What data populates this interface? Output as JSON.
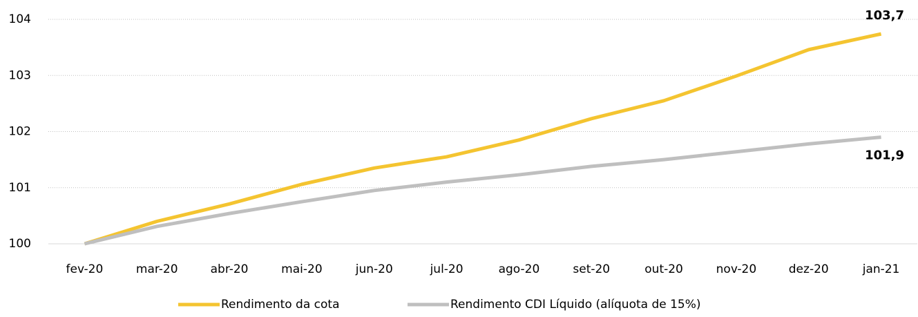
{
  "chart_data": {
    "type": "line",
    "categories": [
      "fev-20",
      "mar-20",
      "abr-20",
      "mai-20",
      "jun-20",
      "jul-20",
      "ago-20",
      "set-20",
      "out-20",
      "nov-20",
      "dez-20",
      "jan-21"
    ],
    "series": [
      {
        "name": "Rendimento da cota",
        "color": "#f4c430",
        "values": [
          100,
          100.4,
          100.71,
          101.06,
          101.35,
          101.55,
          101.85,
          102.23,
          102.55,
          102.99,
          103.46,
          103.74
        ],
        "value_labels": [
          null,
          null,
          null,
          null,
          null,
          null,
          null,
          null,
          null,
          null,
          null,
          "103,7"
        ]
      },
      {
        "name": "Rendimento CDI Líquido (alíquota de 15%)",
        "color": "#bfbfbf",
        "values": [
          100,
          100.31,
          100.54,
          100.75,
          100.95,
          101.1,
          101.23,
          101.38,
          101.5,
          101.64,
          101.78,
          101.9
        ],
        "value_labels": [
          null,
          null,
          null,
          null,
          null,
          null,
          null,
          null,
          null,
          null,
          null,
          "101,9"
        ]
      }
    ],
    "ylim": [
      100,
      104
    ],
    "yticks": [
      100,
      101,
      102,
      103,
      104
    ],
    "grid": true,
    "legend": "bottom"
  }
}
